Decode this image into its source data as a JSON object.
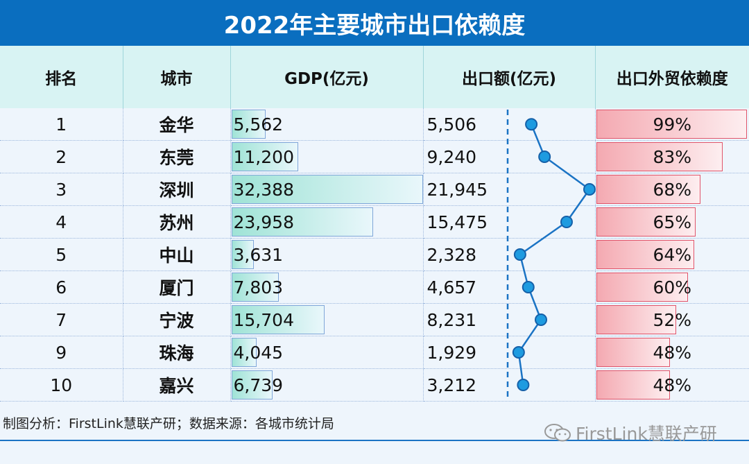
{
  "title": "2022年主要城市出口依赖度",
  "headers": [
    "排名",
    "城市",
    "GDP(亿元)",
    "出口额(亿元)",
    "出口外贸依赖度"
  ],
  "chart_data": {
    "type": "table",
    "title": "2022年主要城市出口依赖度",
    "columns": [
      "排名",
      "城市",
      "GDP(亿元)",
      "出口额(亿元)",
      "出口外贸依赖度"
    ],
    "rows": [
      {
        "rank": "1",
        "city": "金华",
        "gdp": 5562,
        "gdp_text": "5,562",
        "exports": 5506,
        "exports_text": "5,506",
        "dependency": 0.99,
        "dependency_text": "99%"
      },
      {
        "rank": "2",
        "city": "东莞",
        "gdp": 11200,
        "gdp_text": "11,200",
        "exports": 9240,
        "exports_text": "9,240",
        "dependency": 0.83,
        "dependency_text": "83%"
      },
      {
        "rank": "3",
        "city": "深圳",
        "gdp": 32388,
        "gdp_text": "32,388",
        "exports": 21945,
        "exports_text": "21,945",
        "dependency": 0.68,
        "dependency_text": "68%"
      },
      {
        "rank": "4",
        "city": "苏州",
        "gdp": 23958,
        "gdp_text": "23,958",
        "exports": 15475,
        "exports_text": "15,475",
        "dependency": 0.65,
        "dependency_text": "65%"
      },
      {
        "rank": "5",
        "city": "中山",
        "gdp": 3631,
        "gdp_text": "3,631",
        "exports": 2328,
        "exports_text": "2,328",
        "dependency": 0.64,
        "dependency_text": "64%"
      },
      {
        "rank": "6",
        "city": "厦门",
        "gdp": 7803,
        "gdp_text": "7,803",
        "exports": 4657,
        "exports_text": "4,657",
        "dependency": 0.6,
        "dependency_text": "60%"
      },
      {
        "rank": "7",
        "city": "宁波",
        "gdp": 15704,
        "gdp_text": "15,704",
        "exports": 8231,
        "exports_text": "8,231",
        "dependency": 0.52,
        "dependency_text": "52%"
      },
      {
        "rank": "9",
        "city": "珠海",
        "gdp": 4045,
        "gdp_text": "4,045",
        "exports": 1929,
        "exports_text": "1,929",
        "dependency": 0.48,
        "dependency_text": "48%"
      },
      {
        "rank": "10",
        "city": "嘉兴",
        "gdp": 6739,
        "gdp_text": "6,739",
        "exports": 3212,
        "exports_text": "3,212",
        "dependency": 0.48,
        "dependency_text": "48%"
      }
    ]
  },
  "footer": {
    "source": "制图分析：FirstLink慧联产研；数据来源：各城市统计局",
    "watermark": "FirstLink慧联产研"
  },
  "colors": {
    "title_bg": "#0a6ebf",
    "header_bg": "#d8f3f3",
    "gdp_bar": "#9fe3d6",
    "dependency_bar": "#f4a9b1",
    "export_line": "#1a73c4",
    "export_marker": "#1e9be0"
  },
  "icons": {
    "watermark": "wechat-icon"
  }
}
